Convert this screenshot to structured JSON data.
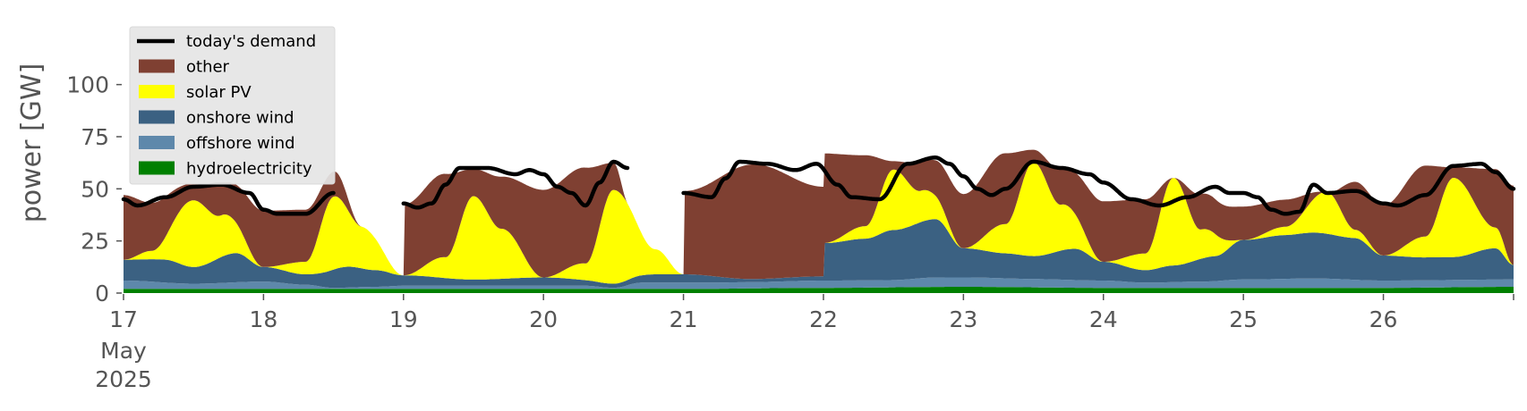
{
  "chart_data": {
    "type": "area",
    "ylabel": "power [GW]",
    "xlabel": "",
    "ylim": [
      0,
      117
    ],
    "xlim": [
      17,
      26.93
    ],
    "grid": false,
    "legend_position": "upper-left",
    "y_ticks": [
      0,
      25,
      50,
      75,
      100
    ],
    "x_ticks": [
      {
        "value": 17,
        "label": "17",
        "sub1": "May",
        "sub2": "2025"
      },
      {
        "value": 18,
        "label": "18"
      },
      {
        "value": 19,
        "label": "19"
      },
      {
        "value": 20,
        "label": "20"
      },
      {
        "value": 21,
        "label": "21"
      },
      {
        "value": 22,
        "label": "22"
      },
      {
        "value": 23,
        "label": "23"
      },
      {
        "value": 24,
        "label": "24"
      },
      {
        "value": 25,
        "label": "25"
      },
      {
        "value": 26,
        "label": "26"
      }
    ],
    "legend": [
      {
        "name": "today's demand",
        "color": "#000000",
        "kind": "line"
      },
      {
        "name": "other",
        "color": "#7f4032",
        "kind": "patch"
      },
      {
        "name": "solar PV",
        "color": "#ffff00",
        "kind": "patch"
      },
      {
        "name": "onshore wind",
        "color": "#3b6182",
        "kind": "patch"
      },
      {
        "name": "offshore wind",
        "color": "#5e88ab",
        "kind": "patch"
      },
      {
        "name": "hydroelectricity",
        "color": "#008000",
        "kind": "patch"
      }
    ],
    "stack_order": [
      "hydroelectricity",
      "offshore wind",
      "onshore wind",
      "solar PV",
      "other"
    ],
    "series": [
      {
        "name": "hydroelectricity",
        "color": "#008000",
        "points": [
          [
            17.0,
            2
          ],
          [
            18.0,
            2
          ],
          [
            19.0,
            2
          ],
          [
            20.0,
            2
          ],
          [
            21.0,
            2
          ],
          [
            22.0,
            2.5
          ],
          [
            23.0,
            3
          ],
          [
            24.0,
            2.5
          ],
          [
            25.0,
            2.5
          ],
          [
            26.0,
            2.5
          ],
          [
            26.93,
            3
          ]
        ]
      },
      {
        "name": "offshore wind",
        "color": "#5e88ab",
        "points": [
          [
            17.0,
            4
          ],
          [
            17.5,
            2.5
          ],
          [
            18.0,
            3.5
          ],
          [
            18.3,
            2
          ],
          [
            18.5,
            0.5
          ],
          [
            18.8,
            1
          ],
          [
            19.0,
            1.5
          ],
          [
            19.5,
            1.5
          ],
          [
            20.0,
            1.5
          ],
          [
            20.3,
            1.5
          ],
          [
            20.5,
            0.5
          ],
          [
            20.7,
            3
          ],
          [
            21.0,
            3
          ],
          [
            21.5,
            3
          ],
          [
            22.0,
            3.5
          ],
          [
            22.5,
            3.5
          ],
          [
            22.8,
            4.5
          ],
          [
            23.0,
            4.5
          ],
          [
            23.5,
            4
          ],
          [
            24.0,
            3.5
          ],
          [
            24.3,
            2.5
          ],
          [
            24.7,
            3
          ],
          [
            25.0,
            4
          ],
          [
            25.5,
            4.5
          ],
          [
            26.0,
            3.5
          ],
          [
            26.5,
            3.5
          ],
          [
            26.93,
            3.5
          ]
        ]
      },
      {
        "name": "onshore wind",
        "color": "#3b6182",
        "points": [
          [
            17.0,
            10
          ],
          [
            17.3,
            11
          ],
          [
            17.5,
            8
          ],
          [
            17.8,
            14
          ],
          [
            18.0,
            7
          ],
          [
            18.3,
            5
          ],
          [
            18.6,
            10
          ],
          [
            18.8,
            8
          ],
          [
            19.0,
            5
          ],
          [
            19.5,
            3
          ],
          [
            20.0,
            4
          ],
          [
            20.5,
            2
          ],
          [
            20.8,
            4
          ],
          [
            21.0,
            4
          ],
          [
            21.5,
            1.5
          ],
          [
            22.0,
            2
          ],
          [
            22.01,
            18
          ],
          [
            22.3,
            20
          ],
          [
            22.5,
            24
          ],
          [
            22.8,
            28
          ],
          [
            23.0,
            14
          ],
          [
            23.3,
            12
          ],
          [
            23.5,
            11
          ],
          [
            23.8,
            15
          ],
          [
            24.0,
            9
          ],
          [
            24.3,
            6
          ],
          [
            24.5,
            8
          ],
          [
            24.8,
            12
          ],
          [
            25.0,
            19
          ],
          [
            25.3,
            21
          ],
          [
            25.5,
            22
          ],
          [
            25.8,
            20
          ],
          [
            26.0,
            12
          ],
          [
            26.3,
            11
          ],
          [
            26.5,
            11
          ],
          [
            26.8,
            15
          ],
          [
            26.93,
            7
          ]
        ]
      },
      {
        "name": "solar PV",
        "color": "#ffff00",
        "points": [
          [
            17.0,
            0
          ],
          [
            17.2,
            4
          ],
          [
            17.5,
            32
          ],
          [
            17.7,
            20
          ],
          [
            18.0,
            0
          ],
          [
            18.3,
            6
          ],
          [
            18.5,
            35
          ],
          [
            18.7,
            20
          ],
          [
            19.0,
            0
          ],
          [
            19.3,
            10
          ],
          [
            19.5,
            40
          ],
          [
            19.7,
            24
          ],
          [
            20.0,
            0
          ],
          [
            20.3,
            8
          ],
          [
            20.5,
            45
          ],
          [
            20.8,
            12
          ],
          [
            21.0,
            0
          ],
          [
            22.0,
            0
          ],
          [
            22.3,
            6
          ],
          [
            22.5,
            29
          ],
          [
            22.7,
            15
          ],
          [
            23.0,
            0
          ],
          [
            23.3,
            14
          ],
          [
            23.5,
            45
          ],
          [
            23.7,
            22
          ],
          [
            24.0,
            0
          ],
          [
            24.3,
            8
          ],
          [
            24.5,
            42
          ],
          [
            24.7,
            14
          ],
          [
            25.0,
            0
          ],
          [
            25.3,
            4
          ],
          [
            25.6,
            20
          ],
          [
            25.8,
            4
          ],
          [
            26.0,
            0
          ],
          [
            26.3,
            10
          ],
          [
            26.5,
            38
          ],
          [
            26.8,
            10
          ],
          [
            26.93,
            0
          ]
        ]
      },
      {
        "name": "other",
        "color": "#7f4032",
        "points": [
          [
            17.0,
            31
          ],
          [
            17.2,
            23
          ],
          [
            17.5,
            8
          ],
          [
            17.7,
            15
          ],
          [
            18.0,
            27
          ],
          [
            18.3,
            25
          ],
          [
            18.5,
            12
          ],
          [
            18.7,
            0
          ],
          [
            19.0,
            0
          ],
          [
            19.01,
            34
          ],
          [
            19.3,
            40
          ],
          [
            19.5,
            13
          ],
          [
            19.7,
            25
          ],
          [
            20.0,
            42
          ],
          [
            20.3,
            46
          ],
          [
            20.5,
            13
          ],
          [
            20.6,
            0
          ],
          [
            21.0,
            0
          ],
          [
            21.01,
            40
          ],
          [
            21.5,
            55
          ],
          [
            22.0,
            43
          ],
          [
            22.3,
            34
          ],
          [
            22.5,
            4
          ],
          [
            22.7,
            14
          ],
          [
            23.0,
            26
          ],
          [
            23.3,
            34
          ],
          [
            23.5,
            6
          ],
          [
            23.7,
            17
          ],
          [
            24.0,
            29
          ],
          [
            24.3,
            26
          ],
          [
            24.5,
            0
          ],
          [
            24.7,
            17
          ],
          [
            25.0,
            16
          ],
          [
            25.3,
            13
          ],
          [
            25.6,
            0
          ],
          [
            25.8,
            23
          ],
          [
            26.0,
            24
          ],
          [
            26.3,
            34
          ],
          [
            26.5,
            5
          ],
          [
            26.8,
            28
          ],
          [
            26.93,
            38
          ]
        ]
      },
      {
        "name": "today's demand",
        "color": "#000000",
        "segments": [
          [
            [
              17.0,
              45
            ],
            [
              17.1,
              42
            ],
            [
              17.3,
              46
            ],
            [
              17.5,
              51
            ],
            [
              17.7,
              52
            ],
            [
              17.9,
              48
            ],
            [
              18.0,
              40
            ],
            [
              18.1,
              38
            ],
            [
              18.3,
              38
            ],
            [
              18.5,
              48
            ]
          ],
          [
            [
              19.0,
              43
            ],
            [
              19.1,
              41
            ],
            [
              19.2,
              43
            ],
            [
              19.3,
              52
            ],
            [
              19.4,
              60
            ],
            [
              19.6,
              60
            ],
            [
              19.8,
              57
            ],
            [
              19.9,
              59
            ],
            [
              20.0,
              57
            ],
            [
              20.1,
              51
            ],
            [
              20.2,
              48
            ],
            [
              20.3,
              42
            ],
            [
              20.4,
              53
            ],
            [
              20.5,
              63
            ],
            [
              20.6,
              60
            ]
          ],
          [
            [
              21.0,
              48
            ],
            [
              21.2,
              46
            ],
            [
              21.3,
              55
            ],
            [
              21.4,
              63
            ],
            [
              21.6,
              62
            ],
            [
              21.8,
              59
            ],
            [
              21.95,
              62
            ],
            [
              22.1,
              52
            ],
            [
              22.2,
              46
            ],
            [
              22.4,
              45
            ],
            [
              22.6,
              62
            ],
            [
              22.8,
              65
            ],
            [
              22.9,
              62
            ],
            [
              23.0,
              56
            ],
            [
              23.1,
              50
            ],
            [
              23.2,
              47
            ],
            [
              23.3,
              50
            ],
            [
              23.5,
              63
            ],
            [
              23.7,
              60
            ],
            [
              23.9,
              57
            ],
            [
              24.0,
              53
            ],
            [
              24.2,
              45
            ],
            [
              24.4,
              42
            ],
            [
              24.6,
              46
            ],
            [
              24.8,
              51
            ],
            [
              24.9,
              48
            ],
            [
              25.0,
              48
            ],
            [
              25.1,
              46
            ],
            [
              25.2,
              40
            ],
            [
              25.3,
              38
            ],
            [
              25.4,
              39
            ],
            [
              25.5,
              52
            ],
            [
              25.6,
              48
            ],
            [
              25.8,
              49
            ],
            [
              26.0,
              43
            ],
            [
              26.1,
              42
            ],
            [
              26.3,
              47
            ],
            [
              26.5,
              61
            ],
            [
              26.7,
              62
            ],
            [
              26.8,
              58
            ],
            [
              26.93,
              50
            ]
          ]
        ]
      }
    ]
  }
}
